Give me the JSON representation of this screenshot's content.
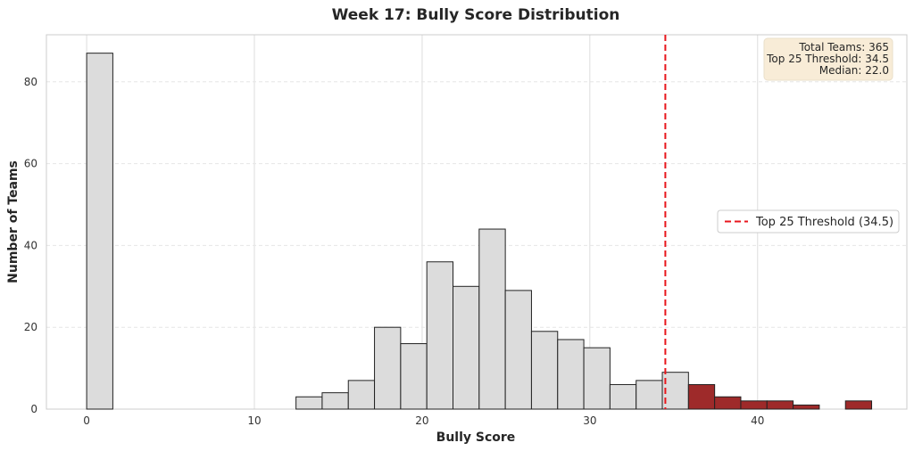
{
  "chart_data": {
    "type": "bar",
    "title": "Week 17: Bully Score Distribution",
    "xlabel": "Bully Score",
    "ylabel": "Number of Teams",
    "xlim": [
      -2.4,
      48.9
    ],
    "ylim": [
      0,
      91.5
    ],
    "xticks": [
      0,
      10,
      20,
      30,
      40
    ],
    "yticks": [
      0,
      20,
      40,
      60,
      80
    ],
    "grid": true,
    "bins": [
      {
        "start": 0.0,
        "end": 1.56,
        "count": 87
      },
      {
        "start": 12.48,
        "end": 14.04,
        "count": 3
      },
      {
        "start": 14.04,
        "end": 15.6,
        "count": 4
      },
      {
        "start": 15.6,
        "end": 17.16,
        "count": 7
      },
      {
        "start": 17.16,
        "end": 18.72,
        "count": 20
      },
      {
        "start": 18.72,
        "end": 20.28,
        "count": 16
      },
      {
        "start": 20.28,
        "end": 21.84,
        "count": 36
      },
      {
        "start": 21.84,
        "end": 23.4,
        "count": 30
      },
      {
        "start": 23.4,
        "end": 24.96,
        "count": 44
      },
      {
        "start": 24.96,
        "end": 26.52,
        "count": 29
      },
      {
        "start": 26.52,
        "end": 28.08,
        "count": 19
      },
      {
        "start": 28.08,
        "end": 29.64,
        "count": 17
      },
      {
        "start": 29.64,
        "end": 31.2,
        "count": 15
      },
      {
        "start": 31.2,
        "end": 32.76,
        "count": 6
      },
      {
        "start": 32.76,
        "end": 34.32,
        "count": 7
      },
      {
        "start": 34.32,
        "end": 35.88,
        "count": 9
      },
      {
        "start": 35.88,
        "end": 37.44,
        "count": 6,
        "highlight": true
      },
      {
        "start": 37.44,
        "end": 39.0,
        "count": 3,
        "highlight": true
      },
      {
        "start": 39.0,
        "end": 40.56,
        "count": 2,
        "highlight": true
      },
      {
        "start": 40.56,
        "end": 42.12,
        "count": 2,
        "highlight": true
      },
      {
        "start": 42.12,
        "end": 43.68,
        "count": 1,
        "highlight": true
      },
      {
        "start": 45.24,
        "end": 46.8,
        "count": 2,
        "highlight": true
      }
    ],
    "threshold": {
      "value": 34.5,
      "label": "Top 25 Threshold (34.5)",
      "color": "#e8161c"
    },
    "legend_position": "center-right",
    "stats_box": {
      "position": "top-right",
      "lines": [
        "Total Teams: 365",
        "Top 25 Threshold: 34.5",
        "Median: 22.0"
      ]
    },
    "colors": {
      "bar": "#dcdcdc",
      "bar_edge": "#222222",
      "highlight": "#9e2a2a",
      "stats_box": "#f8ecd7"
    }
  }
}
